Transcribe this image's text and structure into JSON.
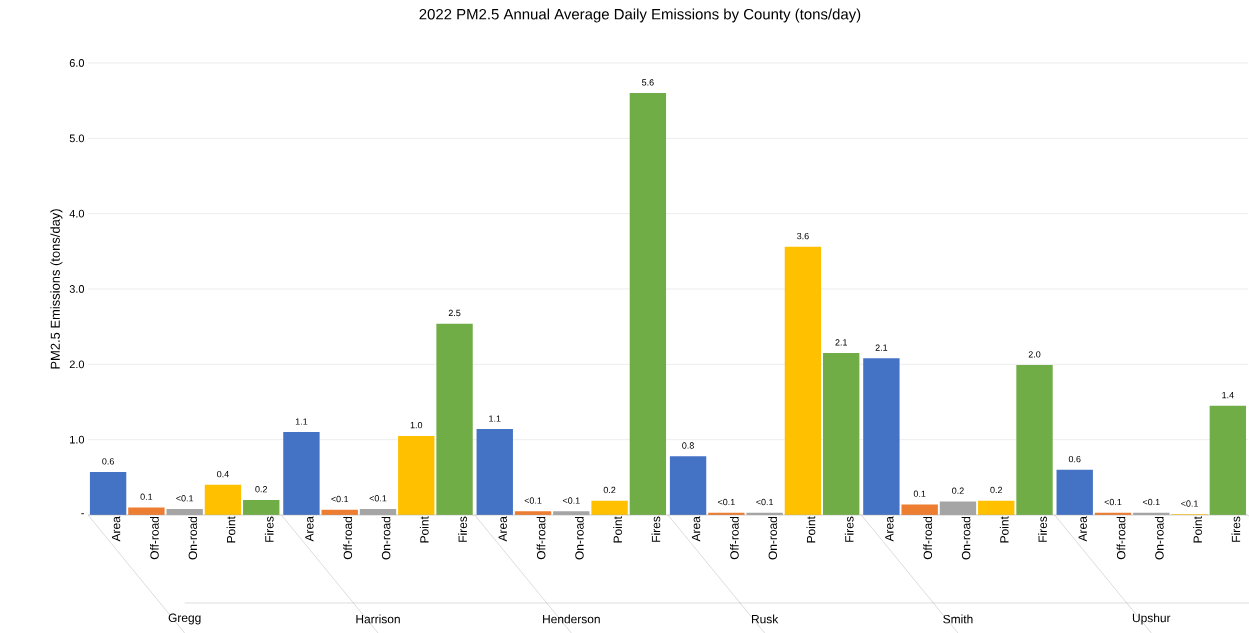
{
  "chart_data": {
    "type": "bar",
    "title": "2022 PM2.5 Annual Average Daily Emissions by County (tons/day)",
    "ylabel": "PM2.5 Emissions (tons/day)",
    "categories": [
      "Gregg",
      "Harrison",
      "Henderson",
      "Rusk",
      "Smith",
      "Upshur"
    ],
    "series": [
      {
        "name": "Area",
        "color": "#4472c4",
        "values": [
          0.57,
          1.1,
          1.14,
          0.78,
          2.08,
          0.6
        ],
        "value_labels": [
          "0.6",
          "1.1",
          "1.1",
          "0.8",
          "2.1",
          "0.6"
        ]
      },
      {
        "name": "Off-road",
        "color": "#ed7d31",
        "values": [
          0.1,
          0.07,
          0.05,
          0.03,
          0.14,
          0.03
        ],
        "value_labels": [
          "0.1",
          "<0.1",
          "<0.1",
          "<0.1",
          "0.1",
          "<0.1"
        ]
      },
      {
        "name": "On-road",
        "color": "#a5a5a5",
        "values": [
          0.08,
          0.08,
          0.05,
          0.03,
          0.18,
          0.03
        ],
        "value_labels": [
          "<0.1",
          "<0.1",
          "<0.1",
          "<0.1",
          "0.2",
          "<0.1"
        ]
      },
      {
        "name": "Point",
        "color": "#ffc000",
        "values": [
          0.4,
          1.05,
          0.19,
          3.56,
          0.19,
          0.01
        ],
        "value_labels": [
          "0.4",
          "1.0",
          "0.2",
          "3.6",
          "0.2",
          "<0.1"
        ]
      },
      {
        "name": "Fires",
        "color": "#70ad47",
        "values": [
          0.2,
          2.54,
          5.6,
          2.15,
          1.99,
          1.45
        ],
        "value_labels": [
          "0.2",
          "2.5",
          "5.6",
          "2.1",
          "2.0",
          "1.4"
        ]
      }
    ],
    "ylim": [
      0,
      6
    ],
    "yticks": [
      {
        "value": 0,
        "label": "-"
      },
      {
        "value": 1,
        "label": "1.0"
      },
      {
        "value": 2,
        "label": "2.0"
      },
      {
        "value": 3,
        "label": "3.0"
      },
      {
        "value": 4,
        "label": "4.0"
      },
      {
        "value": 5,
        "label": "5.0"
      },
      {
        "value": 6,
        "label": "6.0"
      }
    ],
    "grid": "y"
  }
}
